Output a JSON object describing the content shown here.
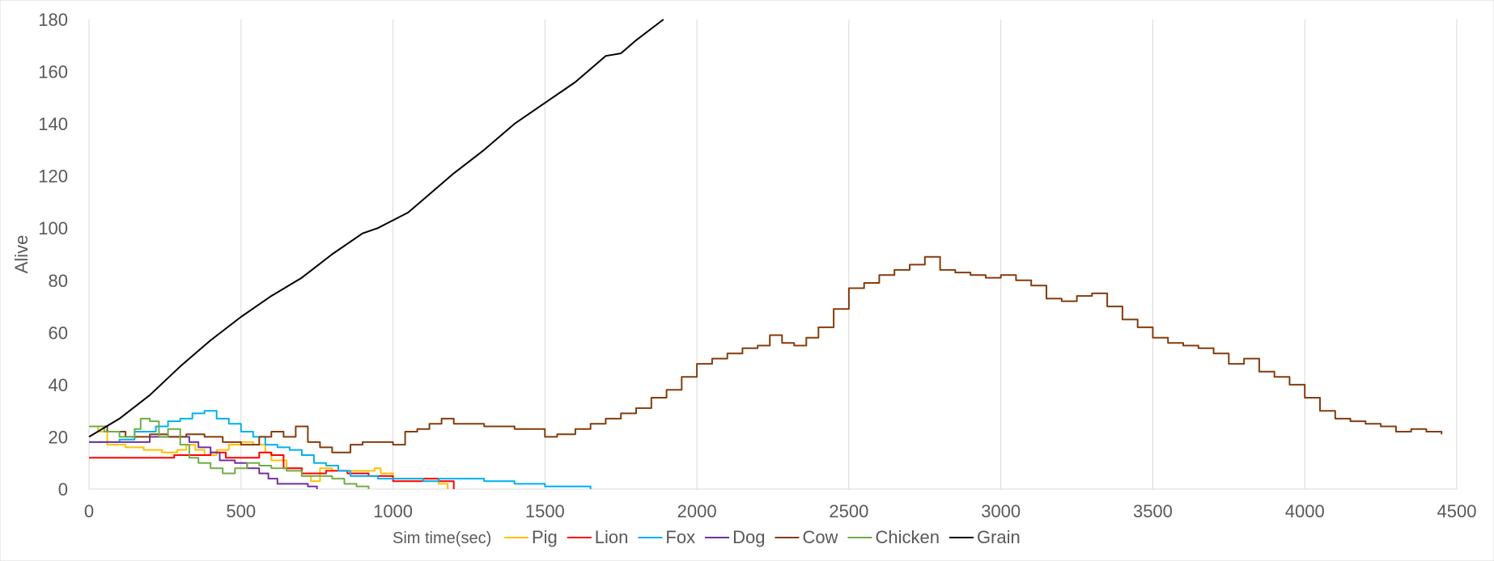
{
  "chart_data": {
    "type": "line",
    "title": "",
    "xlabel": "Sim time(sec)",
    "ylabel": "Alive",
    "xlim": [
      0,
      4500
    ],
    "ylim": [
      0,
      180
    ],
    "xticks": [
      0,
      500,
      1000,
      1500,
      2000,
      2500,
      3000,
      3500,
      4000,
      4500
    ],
    "yticks": [
      0,
      20,
      40,
      60,
      80,
      100,
      120,
      140,
      160,
      180
    ],
    "grid": "vertical",
    "legend": "bottom",
    "series": [
      {
        "name": "Pig",
        "color": "#FFC000",
        "step": true,
        "points": [
          [
            0,
            24
          ],
          [
            30,
            22
          ],
          [
            60,
            17
          ],
          [
            120,
            16
          ],
          [
            180,
            15
          ],
          [
            240,
            14
          ],
          [
            290,
            15
          ],
          [
            320,
            17
          ],
          [
            350,
            15
          ],
          [
            380,
            13
          ],
          [
            420,
            15
          ],
          [
            460,
            17
          ],
          [
            500,
            18
          ],
          [
            540,
            17
          ],
          [
            580,
            14
          ],
          [
            600,
            11
          ],
          [
            650,
            8
          ],
          [
            700,
            5
          ],
          [
            730,
            3
          ],
          [
            760,
            8
          ],
          [
            800,
            7
          ],
          [
            900,
            7
          ],
          [
            940,
            8
          ],
          [
            960,
            6
          ],
          [
            1000,
            4
          ],
          [
            1100,
            4
          ],
          [
            1150,
            2
          ],
          [
            1180,
            0
          ]
        ]
      },
      {
        "name": "Lion",
        "color": "#FF0000",
        "step": true,
        "points": [
          [
            0,
            12
          ],
          [
            250,
            12
          ],
          [
            280,
            13
          ],
          [
            350,
            13
          ],
          [
            400,
            14
          ],
          [
            450,
            12
          ],
          [
            520,
            12
          ],
          [
            560,
            14
          ],
          [
            600,
            13
          ],
          [
            640,
            8
          ],
          [
            700,
            6
          ],
          [
            780,
            7
          ],
          [
            850,
            6
          ],
          [
            920,
            5
          ],
          [
            1000,
            3
          ],
          [
            1100,
            4
          ],
          [
            1150,
            3
          ],
          [
            1200,
            0
          ]
        ]
      },
      {
        "name": "Fox",
        "color": "#00B0F0",
        "step": true,
        "points": [
          [
            0,
            18
          ],
          [
            100,
            19
          ],
          [
            150,
            22
          ],
          [
            220,
            24
          ],
          [
            260,
            26
          ],
          [
            300,
            27
          ],
          [
            340,
            29
          ],
          [
            380,
            30
          ],
          [
            420,
            27
          ],
          [
            460,
            25
          ],
          [
            500,
            22
          ],
          [
            540,
            20
          ],
          [
            580,
            17
          ],
          [
            620,
            16
          ],
          [
            660,
            15
          ],
          [
            700,
            13
          ],
          [
            740,
            10
          ],
          [
            780,
            9
          ],
          [
            820,
            7
          ],
          [
            860,
            5
          ],
          [
            900,
            5
          ],
          [
            950,
            4
          ],
          [
            1000,
            4
          ],
          [
            1100,
            3
          ],
          [
            1150,
            4
          ],
          [
            1300,
            3
          ],
          [
            1400,
            2
          ],
          [
            1500,
            1
          ],
          [
            1600,
            1
          ],
          [
            1650,
            0
          ]
        ]
      },
      {
        "name": "Dog",
        "color": "#7030A0",
        "step": true,
        "points": [
          [
            0,
            18
          ],
          [
            150,
            18
          ],
          [
            200,
            20
          ],
          [
            280,
            20
          ],
          [
            330,
            18
          ],
          [
            360,
            16
          ],
          [
            400,
            14
          ],
          [
            430,
            11
          ],
          [
            480,
            10
          ],
          [
            520,
            8
          ],
          [
            560,
            6
          ],
          [
            590,
            4
          ],
          [
            620,
            2
          ],
          [
            690,
            2
          ],
          [
            720,
            1
          ],
          [
            750,
            0
          ]
        ]
      },
      {
        "name": "Cow",
        "color": "#843C0C",
        "step": true,
        "points": [
          [
            0,
            24
          ],
          [
            60,
            22
          ],
          [
            120,
            20
          ],
          [
            200,
            21
          ],
          [
            260,
            20
          ],
          [
            320,
            21
          ],
          [
            380,
            20
          ],
          [
            440,
            18
          ],
          [
            500,
            17
          ],
          [
            560,
            20
          ],
          [
            600,
            22
          ],
          [
            640,
            20
          ],
          [
            680,
            24
          ],
          [
            720,
            18
          ],
          [
            760,
            16
          ],
          [
            800,
            14
          ],
          [
            860,
            17
          ],
          [
            900,
            18
          ],
          [
            960,
            18
          ],
          [
            1000,
            17
          ],
          [
            1040,
            22
          ],
          [
            1080,
            23
          ],
          [
            1120,
            25
          ],
          [
            1160,
            27
          ],
          [
            1200,
            25
          ],
          [
            1260,
            25
          ],
          [
            1300,
            24
          ],
          [
            1400,
            23
          ],
          [
            1460,
            23
          ],
          [
            1500,
            20
          ],
          [
            1540,
            21
          ],
          [
            1600,
            23
          ],
          [
            1650,
            25
          ],
          [
            1700,
            27
          ],
          [
            1750,
            29
          ],
          [
            1800,
            31
          ],
          [
            1850,
            35
          ],
          [
            1900,
            38
          ],
          [
            1950,
            43
          ],
          [
            2000,
            48
          ],
          [
            2050,
            50
          ],
          [
            2100,
            52
          ],
          [
            2150,
            54
          ],
          [
            2200,
            55
          ],
          [
            2240,
            59
          ],
          [
            2280,
            56
          ],
          [
            2320,
            55
          ],
          [
            2360,
            58
          ],
          [
            2400,
            62
          ],
          [
            2450,
            69
          ],
          [
            2500,
            77
          ],
          [
            2550,
            79
          ],
          [
            2600,
            82
          ],
          [
            2650,
            84
          ],
          [
            2700,
            86
          ],
          [
            2750,
            89
          ],
          [
            2800,
            84
          ],
          [
            2850,
            83
          ],
          [
            2900,
            82
          ],
          [
            2950,
            81
          ],
          [
            3000,
            82
          ],
          [
            3050,
            80
          ],
          [
            3100,
            78
          ],
          [
            3150,
            73
          ],
          [
            3200,
            72
          ],
          [
            3250,
            74
          ],
          [
            3300,
            75
          ],
          [
            3350,
            70
          ],
          [
            3400,
            65
          ],
          [
            3450,
            62
          ],
          [
            3500,
            58
          ],
          [
            3550,
            56
          ],
          [
            3600,
            55
          ],
          [
            3650,
            54
          ],
          [
            3700,
            52
          ],
          [
            3750,
            48
          ],
          [
            3800,
            50
          ],
          [
            3850,
            45
          ],
          [
            3900,
            43
          ],
          [
            3950,
            40
          ],
          [
            4000,
            35
          ],
          [
            4050,
            30
          ],
          [
            4100,
            27
          ],
          [
            4150,
            26
          ],
          [
            4200,
            25
          ],
          [
            4250,
            24
          ],
          [
            4300,
            22
          ],
          [
            4350,
            23
          ],
          [
            4400,
            22
          ],
          [
            4450,
            21
          ]
        ]
      },
      {
        "name": "Chicken",
        "color": "#70AD47",
        "step": true,
        "points": [
          [
            0,
            24
          ],
          [
            50,
            22
          ],
          [
            100,
            20
          ],
          [
            150,
            23
          ],
          [
            170,
            27
          ],
          [
            200,
            26
          ],
          [
            230,
            20
          ],
          [
            260,
            23
          ],
          [
            300,
            17
          ],
          [
            330,
            12
          ],
          [
            360,
            10
          ],
          [
            400,
            8
          ],
          [
            440,
            6
          ],
          [
            480,
            8
          ],
          [
            520,
            10
          ],
          [
            560,
            9
          ],
          [
            600,
            8
          ],
          [
            650,
            7
          ],
          [
            700,
            5
          ],
          [
            750,
            5
          ],
          [
            800,
            4
          ],
          [
            840,
            2
          ],
          [
            880,
            1
          ],
          [
            920,
            0
          ]
        ]
      },
      {
        "name": "Grain",
        "color": "#000000",
        "step": false,
        "points": [
          [
            0,
            20
          ],
          [
            100,
            27
          ],
          [
            200,
            36
          ],
          [
            300,
            47
          ],
          [
            400,
            57
          ],
          [
            500,
            66
          ],
          [
            600,
            74
          ],
          [
            700,
            81
          ],
          [
            800,
            90
          ],
          [
            900,
            98
          ],
          [
            950,
            100
          ],
          [
            1000,
            103
          ],
          [
            1050,
            106
          ],
          [
            1100,
            111
          ],
          [
            1200,
            121
          ],
          [
            1300,
            130
          ],
          [
            1400,
            140
          ],
          [
            1500,
            148
          ],
          [
            1600,
            156
          ],
          [
            1700,
            166
          ],
          [
            1750,
            167
          ],
          [
            1800,
            172
          ],
          [
            1890,
            180
          ]
        ]
      }
    ]
  }
}
